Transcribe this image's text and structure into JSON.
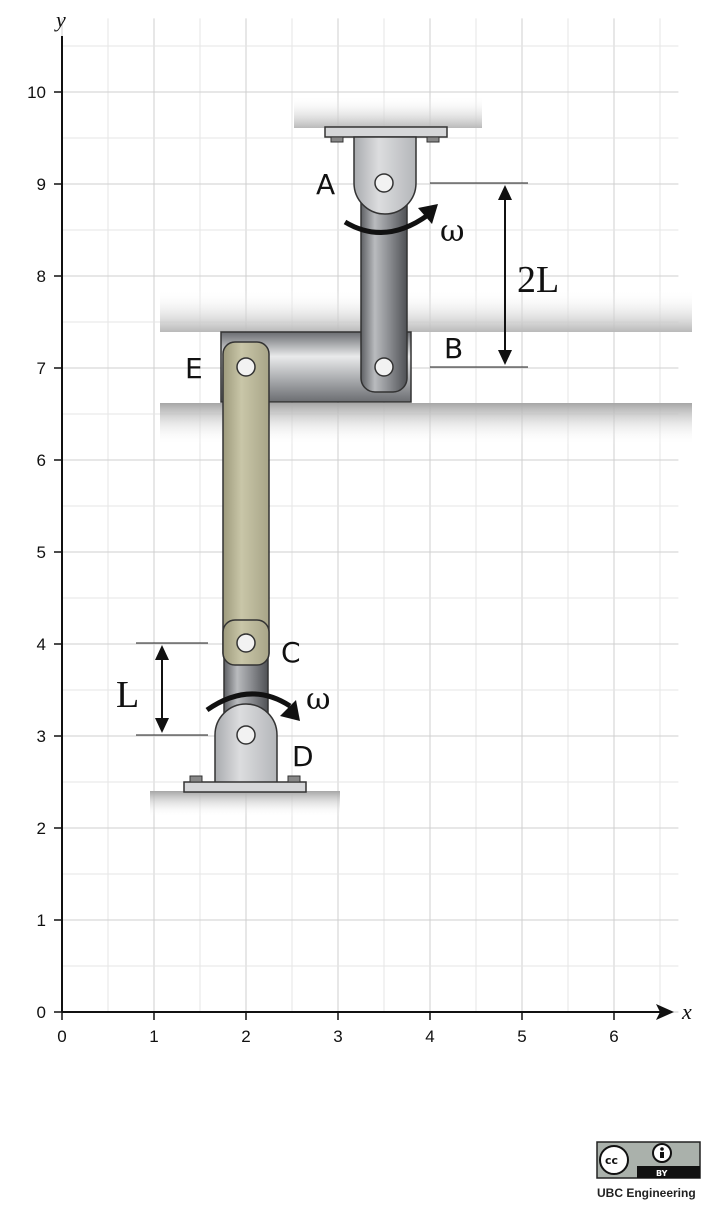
{
  "axes": {
    "x_name": "x",
    "y_name": "y",
    "x_ticks": [
      "0",
      "1",
      "2",
      "3",
      "4",
      "5",
      "6"
    ],
    "y_ticks": [
      "0",
      "1",
      "2",
      "3",
      "4",
      "5",
      "6",
      "7",
      "8",
      "9",
      "10"
    ],
    "xlim": [
      0,
      6.7
    ],
    "ylim": [
      0,
      10.8
    ],
    "grid": true
  },
  "points": {
    "A": {
      "label": "A",
      "x": 3.5,
      "y": 9
    },
    "B": {
      "label": "B",
      "x": 3.5,
      "y": 7
    },
    "C": {
      "label": "C",
      "x": 2,
      "y": 4
    },
    "D": {
      "label": "D",
      "x": 2,
      "y": 3
    },
    "E": {
      "label": "E",
      "x": 2,
      "y": 7
    }
  },
  "links": {
    "AB": "A-B crank",
    "DC": "D-C crank",
    "EC": "E-C connecting rod",
    "EB": "E-B horizontal bar"
  },
  "annotations": {
    "length_upper": "2L",
    "length_lower": "L",
    "omega_upper": "ω",
    "omega_lower": "ω"
  },
  "license": {
    "cc": "cc",
    "by": "BY",
    "credit": "UBC Engineering"
  },
  "colors": {
    "grid": "#cfcfcf",
    "steel": "#7c7e82",
    "rod": "#bcb99a",
    "bracket": "#c9cacc"
  }
}
